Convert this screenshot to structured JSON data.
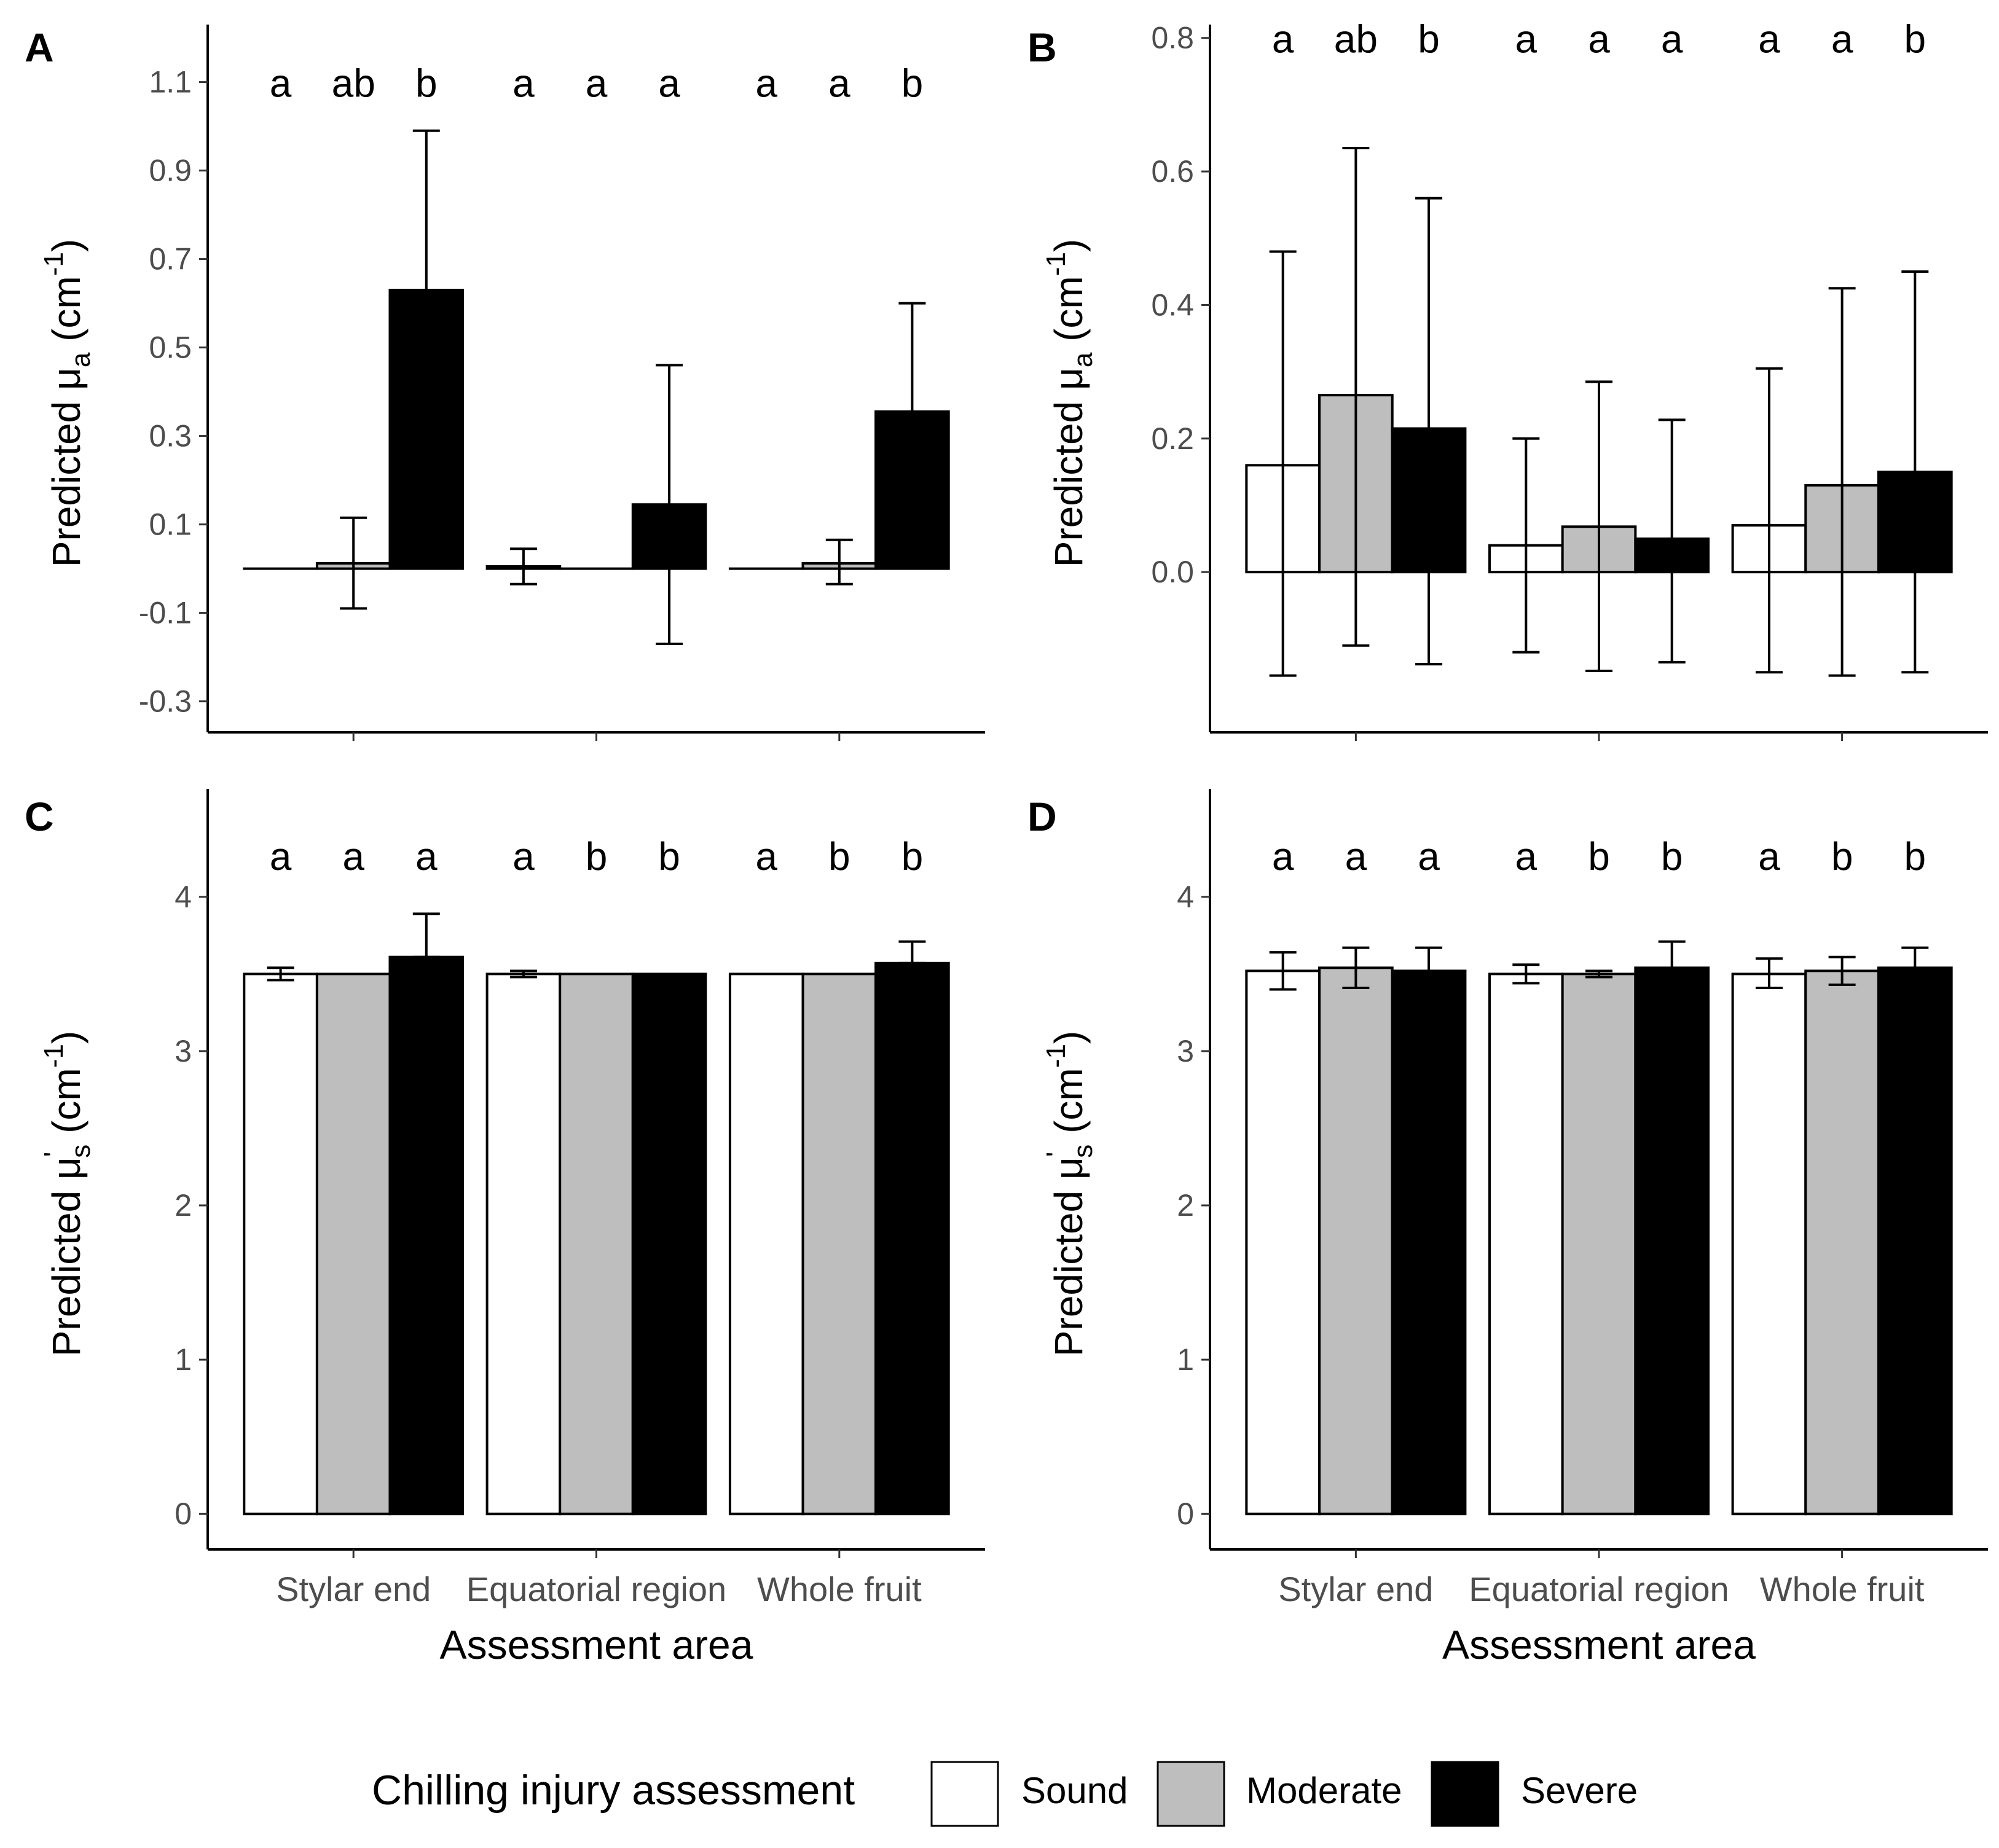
{
  "legend": {
    "title": "Chilling injury assessment",
    "entries": [
      {
        "label": "Sound",
        "color": "#ffffff"
      },
      {
        "label": "Moderate",
        "color": "#bebebe"
      },
      {
        "label": "Severe",
        "color": "#000000"
      }
    ]
  },
  "chart_data": [
    {
      "panel": "A",
      "type": "bar",
      "xlabel": "",
      "ylabel": {
        "pre": "Predicted ",
        "sym": "μ",
        "sub": "a",
        "unit": " (cm",
        "exp": "-1",
        "close": ")"
      },
      "categories": [
        "Stylar end",
        "Equatorial region",
        "Whole fruit"
      ],
      "show_category_labels": false,
      "ylim": [
        -0.37,
        1.23
      ],
      "yticks": [
        "-0.3",
        "-0.1",
        "0.1",
        "0.3",
        "0.5",
        "0.7",
        "0.9",
        "1.1"
      ],
      "letter_y": 1.1,
      "series": [
        {
          "name": "Sound",
          "values": [
            0.0,
            0.005,
            0.0
          ],
          "err_low": [
            0.0,
            -0.035,
            0.0
          ],
          "err_high": [
            0.0,
            0.045,
            0.0
          ],
          "letters": [
            "a",
            "a",
            "a"
          ]
        },
        {
          "name": "Moderate",
          "values": [
            0.012,
            0.0,
            0.012
          ],
          "err_low": [
            -0.09,
            0.0,
            -0.035
          ],
          "err_high": [
            0.115,
            0.0,
            0.065
          ],
          "letters": [
            "ab",
            "a",
            "a"
          ]
        },
        {
          "name": "Severe",
          "values": [
            0.63,
            0.145,
            0.355
          ],
          "err_low": [
            0.63,
            -0.17,
            0.355
          ],
          "err_high": [
            0.99,
            0.46,
            0.6
          ],
          "letters": [
            "b",
            "a",
            "b"
          ]
        }
      ]
    },
    {
      "panel": "B",
      "type": "bar",
      "xlabel": "",
      "ylabel": {
        "pre": "Predicted ",
        "sym": "μ",
        "sub": "a",
        "unit": " (cm",
        "exp": "-1",
        "close": ")"
      },
      "categories": [
        "Stylar end",
        "Equatorial region",
        "Whole fruit"
      ],
      "show_category_labels": false,
      "ylim": [
        -0.24,
        0.82
      ],
      "yticks": [
        "0.0",
        "0.2",
        "0.4",
        "0.6",
        "0.8"
      ],
      "letter_y": 0.8,
      "series": [
        {
          "name": "Sound",
          "values": [
            0.16,
            0.04,
            0.07
          ],
          "err_low": [
            -0.155,
            -0.12,
            -0.15
          ],
          "err_high": [
            0.48,
            0.2,
            0.305
          ],
          "letters": [
            "a",
            "a",
            "a"
          ]
        },
        {
          "name": "Moderate",
          "values": [
            0.265,
            0.068,
            0.13
          ],
          "err_low": [
            -0.11,
            -0.148,
            -0.155
          ],
          "err_high": [
            0.635,
            0.285,
            0.425
          ],
          "letters": [
            "ab",
            "a",
            "a"
          ]
        },
        {
          "name": "Severe",
          "values": [
            0.215,
            0.05,
            0.15
          ],
          "err_low": [
            -0.138,
            -0.135,
            -0.15
          ],
          "err_high": [
            0.56,
            0.228,
            0.45
          ],
          "letters": [
            "b",
            "a",
            "b"
          ]
        }
      ]
    },
    {
      "panel": "C",
      "type": "bar",
      "xlabel": "Assessment area",
      "ylabel": {
        "pre": "Predicted ",
        "sym": "μ",
        "sub": "s",
        "prime": "'",
        "unit": " (cm",
        "exp": "-1",
        "close": ")"
      },
      "categories": [
        "Stylar end",
        "Equatorial region",
        "Whole fruit"
      ],
      "show_category_labels": true,
      "ylim": [
        -0.23,
        4.7
      ],
      "yticks": [
        "0",
        "1",
        "2",
        "3",
        "4"
      ],
      "letter_y": 4.27,
      "series": [
        {
          "name": "Sound",
          "values": [
            3.5,
            3.5,
            3.5
          ],
          "err_low": [
            3.46,
            3.48,
            3.5
          ],
          "err_high": [
            3.54,
            3.52,
            3.5
          ],
          "letters": [
            "a",
            "a",
            "a"
          ]
        },
        {
          "name": "Moderate",
          "values": [
            3.5,
            3.5,
            3.5
          ],
          "err_low": [
            3.5,
            3.5,
            3.5
          ],
          "err_high": [
            3.5,
            3.5,
            3.5
          ],
          "letters": [
            "a",
            "b",
            "b"
          ]
        },
        {
          "name": "Severe",
          "values": [
            3.61,
            3.5,
            3.57
          ],
          "err_low": [
            3.61,
            3.5,
            3.57
          ],
          "err_high": [
            3.89,
            3.5,
            3.71
          ],
          "letters": [
            "a",
            "b",
            "b"
          ]
        }
      ]
    },
    {
      "panel": "D",
      "type": "bar",
      "xlabel": "Assessment area",
      "ylabel": {
        "pre": "Predicted ",
        "sym": "μ",
        "sub": "s",
        "prime": "'",
        "unit": " (cm",
        "exp": "-1",
        "close": ")"
      },
      "categories": [
        "Stylar end",
        "Equatorial region",
        "Whole fruit"
      ],
      "show_category_labels": true,
      "ylim": [
        -0.23,
        4.7
      ],
      "yticks": [
        "0",
        "1",
        "2",
        "3",
        "4"
      ],
      "letter_y": 4.27,
      "series": [
        {
          "name": "Sound",
          "values": [
            3.52,
            3.5,
            3.5
          ],
          "err_low": [
            3.4,
            3.44,
            3.41
          ],
          "err_high": [
            3.64,
            3.56,
            3.6
          ],
          "letters": [
            "a",
            "a",
            "a"
          ]
        },
        {
          "name": "Moderate",
          "values": [
            3.54,
            3.5,
            3.52
          ],
          "err_low": [
            3.41,
            3.48,
            3.43
          ],
          "err_high": [
            3.67,
            3.52,
            3.61
          ],
          "letters": [
            "a",
            "b",
            "b"
          ]
        },
        {
          "name": "Severe",
          "values": [
            3.52,
            3.54,
            3.54
          ],
          "err_low": [
            3.4,
            3.37,
            3.42
          ],
          "err_high": [
            3.67,
            3.71,
            3.67
          ],
          "letters": [
            "a",
            "b",
            "b"
          ]
        }
      ]
    }
  ]
}
